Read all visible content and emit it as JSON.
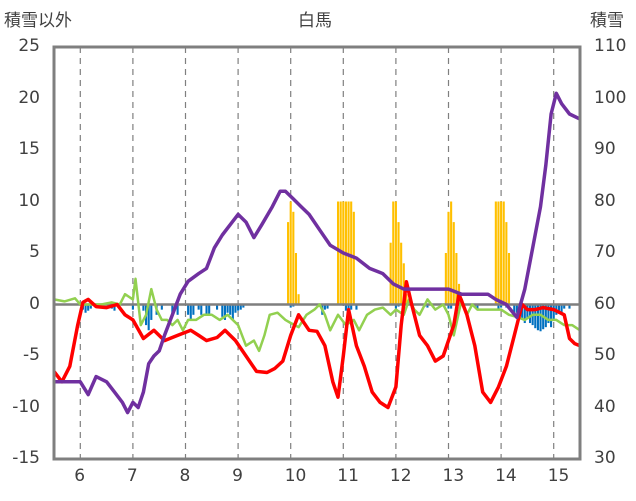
{
  "chart_data": {
    "type": "line",
    "title": "白馬",
    "ylabel_left": "積雪以外",
    "ylabel_right": "積雪",
    "ylim_left": [
      -15,
      25
    ],
    "ylim_right": [
      30,
      110
    ],
    "yticks_left": [
      "25",
      "20",
      "15",
      "10",
      "5",
      "0",
      "-5",
      "-10",
      "-15"
    ],
    "yticks_right": [
      "110",
      "100",
      "90",
      "80",
      "70",
      "60",
      "50",
      "40",
      "30"
    ],
    "xlim": [
      5.5,
      15.5
    ],
    "xticks": [
      "6",
      "7",
      "8",
      "9",
      "10",
      "11",
      "12",
      "13",
      "14",
      "15"
    ],
    "grid": "vertical-dashed",
    "series": [
      {
        "axis": "right",
        "color": "#7030a0",
        "points": [
          [
            5.5,
            45
          ],
          [
            5.75,
            45
          ],
          [
            6.0,
            45
          ],
          [
            6.15,
            42.5
          ],
          [
            6.3,
            46
          ],
          [
            6.5,
            45
          ],
          [
            6.65,
            43
          ],
          [
            6.8,
            41
          ],
          [
            6.9,
            39
          ],
          [
            7.0,
            41
          ],
          [
            7.1,
            40
          ],
          [
            7.2,
            43
          ],
          [
            7.3,
            48.5
          ],
          [
            7.4,
            50
          ],
          [
            7.5,
            51
          ],
          [
            7.6,
            54
          ],
          [
            7.75,
            58
          ],
          [
            7.9,
            62
          ],
          [
            8.05,
            64.5
          ],
          [
            8.25,
            66
          ],
          [
            8.4,
            67
          ],
          [
            8.55,
            71
          ],
          [
            8.7,
            73.5
          ],
          [
            8.85,
            75.5
          ],
          [
            9.0,
            77.5
          ],
          [
            9.15,
            76
          ],
          [
            9.3,
            73
          ],
          [
            9.45,
            75.5
          ],
          [
            9.65,
            79
          ],
          [
            9.8,
            82
          ],
          [
            9.9,
            82
          ],
          [
            10.05,
            80.5
          ],
          [
            10.2,
            79
          ],
          [
            10.35,
            77.5
          ],
          [
            10.55,
            74.5
          ],
          [
            10.75,
            71.5
          ],
          [
            11.0,
            70
          ],
          [
            11.25,
            69
          ],
          [
            11.5,
            67
          ],
          [
            11.75,
            66
          ],
          [
            11.95,
            64
          ],
          [
            12.15,
            63
          ],
          [
            12.5,
            63
          ],
          [
            12.75,
            63
          ],
          [
            13.0,
            63
          ],
          [
            13.25,
            62
          ],
          [
            13.5,
            62
          ],
          [
            13.75,
            62
          ],
          [
            13.9,
            61
          ],
          [
            14.1,
            60
          ],
          [
            14.3,
            57.5
          ],
          [
            14.45,
            63
          ],
          [
            14.6,
            71
          ],
          [
            14.75,
            79
          ],
          [
            14.85,
            87
          ],
          [
            14.95,
            97
          ],
          [
            15.05,
            101
          ],
          [
            15.15,
            99
          ],
          [
            15.3,
            97
          ],
          [
            15.4,
            96.5
          ],
          [
            15.5,
            96
          ]
        ]
      },
      {
        "axis": "left",
        "color": "#ff0000",
        "points": [
          [
            5.5,
            -6.5
          ],
          [
            5.65,
            -7.5
          ],
          [
            5.8,
            -6
          ],
          [
            5.95,
            -2
          ],
          [
            6.05,
            0.2
          ],
          [
            6.15,
            0.5
          ],
          [
            6.3,
            -0.2
          ],
          [
            6.5,
            -0.3
          ],
          [
            6.7,
            0
          ],
          [
            6.85,
            -1
          ],
          [
            7.0,
            -1.5
          ],
          [
            7.2,
            -3.3
          ],
          [
            7.4,
            -2.5
          ],
          [
            7.6,
            -3.5
          ],
          [
            7.85,
            -3
          ],
          [
            8.1,
            -2.5
          ],
          [
            8.25,
            -3
          ],
          [
            8.4,
            -3.5
          ],
          [
            8.6,
            -3.2
          ],
          [
            8.75,
            -2.5
          ],
          [
            8.95,
            -3.5
          ],
          [
            9.15,
            -5
          ],
          [
            9.35,
            -6.5
          ],
          [
            9.55,
            -6.6
          ],
          [
            9.7,
            -6.2
          ],
          [
            9.85,
            -5.5
          ],
          [
            10.0,
            -3
          ],
          [
            10.15,
            -1
          ],
          [
            10.35,
            -2.5
          ],
          [
            10.5,
            -2.6
          ],
          [
            10.65,
            -4
          ],
          [
            10.8,
            -7.5
          ],
          [
            10.9,
            -9
          ],
          [
            11.0,
            -5
          ],
          [
            11.1,
            -0.5
          ],
          [
            11.25,
            -4
          ],
          [
            11.4,
            -6
          ],
          [
            11.55,
            -8.5
          ],
          [
            11.7,
            -9.5
          ],
          [
            11.85,
            -10
          ],
          [
            12.0,
            -8
          ],
          [
            12.1,
            -2
          ],
          [
            12.2,
            2.2
          ],
          [
            12.3,
            0
          ],
          [
            12.45,
            -3
          ],
          [
            12.6,
            -4
          ],
          [
            12.75,
            -5.5
          ],
          [
            12.9,
            -5
          ],
          [
            13.1,
            -2
          ],
          [
            13.2,
            1
          ],
          [
            13.35,
            -1
          ],
          [
            13.5,
            -4
          ],
          [
            13.65,
            -8.5
          ],
          [
            13.8,
            -9.5
          ],
          [
            13.95,
            -8
          ],
          [
            14.1,
            -6
          ],
          [
            14.25,
            -3
          ],
          [
            14.4,
            0
          ],
          [
            14.5,
            -0.5
          ],
          [
            14.65,
            -0.5
          ],
          [
            14.8,
            -0.3
          ],
          [
            15.0,
            -0.5
          ],
          [
            15.2,
            -1
          ],
          [
            15.3,
            -3.3
          ],
          [
            15.4,
            -3.8
          ],
          [
            15.5,
            -4
          ]
        ]
      },
      {
        "axis": "left",
        "color": "#92d050",
        "points": [
          [
            5.5,
            0.5
          ],
          [
            5.7,
            0.3
          ],
          [
            5.9,
            0.6
          ],
          [
            6.0,
            0
          ],
          [
            6.2,
            0
          ],
          [
            6.4,
            0
          ],
          [
            6.6,
            0.2
          ],
          [
            6.75,
            0
          ],
          [
            6.85,
            1
          ],
          [
            7.0,
            0.5
          ],
          [
            7.05,
            2.5
          ],
          [
            7.15,
            -2
          ],
          [
            7.25,
            -1
          ],
          [
            7.35,
            1.5
          ],
          [
            7.45,
            -0.5
          ],
          [
            7.55,
            -1.5
          ],
          [
            7.65,
            -1.5
          ],
          [
            7.75,
            -2
          ],
          [
            7.85,
            -1.5
          ],
          [
            7.95,
            -2.5
          ],
          [
            8.05,
            -1.5
          ],
          [
            8.2,
            -1.5
          ],
          [
            8.35,
            -1
          ],
          [
            8.5,
            -1
          ],
          [
            8.65,
            -1.5
          ],
          [
            8.8,
            -1
          ],
          [
            9.0,
            -2
          ],
          [
            9.15,
            -4
          ],
          [
            9.3,
            -3.5
          ],
          [
            9.4,
            -4.5
          ],
          [
            9.5,
            -3
          ],
          [
            9.6,
            -1
          ],
          [
            9.75,
            -0.8
          ],
          [
            9.9,
            -1.5
          ],
          [
            10.0,
            -1.8
          ],
          [
            10.15,
            -2.2
          ],
          [
            10.3,
            -1
          ],
          [
            10.45,
            -0.5
          ],
          [
            10.55,
            0
          ],
          [
            10.65,
            -1
          ],
          [
            10.75,
            -2.5
          ],
          [
            10.9,
            -1
          ],
          [
            11.05,
            -2
          ],
          [
            11.2,
            -1.5
          ],
          [
            11.3,
            -2.5
          ],
          [
            11.45,
            -1
          ],
          [
            11.6,
            -0.5
          ],
          [
            11.75,
            -0.3
          ],
          [
            11.9,
            -1
          ],
          [
            12.0,
            -0.5
          ],
          [
            12.15,
            -1
          ],
          [
            12.25,
            0.5
          ],
          [
            12.35,
            -0.5
          ],
          [
            12.45,
            -1
          ],
          [
            12.6,
            0.5
          ],
          [
            12.75,
            -0.5
          ],
          [
            12.9,
            0
          ],
          [
            13.0,
            -1
          ],
          [
            13.1,
            -3
          ],
          [
            13.25,
            0.5
          ],
          [
            13.35,
            -1
          ],
          [
            13.45,
            0
          ],
          [
            13.55,
            -0.5
          ],
          [
            13.7,
            -0.5
          ],
          [
            13.85,
            -0.5
          ],
          [
            14.0,
            -0.5
          ],
          [
            14.15,
            -1
          ],
          [
            14.3,
            -1.2
          ],
          [
            14.45,
            -1.5
          ],
          [
            14.6,
            -1
          ],
          [
            14.75,
            -1
          ],
          [
            14.9,
            -1.5
          ],
          [
            15.05,
            -1.5
          ],
          [
            15.2,
            -2
          ],
          [
            15.35,
            -2
          ],
          [
            15.5,
            -2.5
          ]
        ]
      }
    ],
    "bars": [
      {
        "axis": "left",
        "color": "#ffc000",
        "width": 0.04,
        "points": [
          [
            9.95,
            8
          ],
          [
            10.0,
            10
          ],
          [
            10.05,
            9
          ],
          [
            10.1,
            5
          ],
          [
            10.15,
            1
          ],
          [
            10.9,
            10
          ],
          [
            10.95,
            10
          ],
          [
            11.0,
            10
          ],
          [
            11.05,
            10
          ],
          [
            11.1,
            10
          ],
          [
            11.15,
            10
          ],
          [
            11.2,
            9
          ],
          [
            11.9,
            6
          ],
          [
            11.95,
            10
          ],
          [
            12.0,
            10
          ],
          [
            12.05,
            8
          ],
          [
            12.1,
            6
          ],
          [
            12.15,
            4
          ],
          [
            12.2,
            1
          ],
          [
            12.95,
            5
          ],
          [
            13.0,
            9
          ],
          [
            13.05,
            10
          ],
          [
            13.1,
            8
          ],
          [
            13.15,
            5
          ],
          [
            13.2,
            2
          ],
          [
            13.9,
            10
          ],
          [
            13.95,
            10
          ],
          [
            14.0,
            10
          ],
          [
            14.05,
            10
          ],
          [
            14.1,
            8
          ],
          [
            14.15,
            5
          ]
        ]
      },
      {
        "axis": "left",
        "color": "#0070c0",
        "width": 0.04,
        "points": [
          [
            6.05,
            -0.5
          ],
          [
            6.1,
            -0.8
          ],
          [
            6.15,
            -0.6
          ],
          [
            6.2,
            -0.4
          ],
          [
            6.3,
            -0.3
          ],
          [
            6.6,
            -0.4
          ],
          [
            6.65,
            -0.6
          ],
          [
            7.0,
            -0.5
          ],
          [
            7.2,
            -0.6
          ],
          [
            7.25,
            -2
          ],
          [
            7.3,
            -2.5
          ],
          [
            7.35,
            -1.5
          ],
          [
            7.45,
            -1
          ],
          [
            7.55,
            -0.5
          ],
          [
            7.75,
            -1
          ],
          [
            7.85,
            -1
          ],
          [
            8.05,
            -1
          ],
          [
            8.1,
            -1.5
          ],
          [
            8.15,
            -1
          ],
          [
            8.25,
            -0.5
          ],
          [
            8.3,
            -1
          ],
          [
            8.4,
            -1
          ],
          [
            8.45,
            -1
          ],
          [
            8.6,
            -0.5
          ],
          [
            8.7,
            -1.2
          ],
          [
            8.75,
            -1.5
          ],
          [
            8.8,
            -0.8
          ],
          [
            8.85,
            -1
          ],
          [
            8.9,
            -1.5
          ],
          [
            8.95,
            -0.8
          ],
          [
            9.0,
            -0.6
          ],
          [
            9.05,
            -0.5
          ],
          [
            9.1,
            -0.3
          ],
          [
            10.0,
            -0.3
          ],
          [
            10.05,
            -0.2
          ],
          [
            10.6,
            -1
          ],
          [
            10.65,
            -0.5
          ],
          [
            10.7,
            -0.4
          ],
          [
            11.05,
            -0.6
          ],
          [
            11.1,
            -1
          ],
          [
            11.15,
            -0.5
          ],
          [
            11.25,
            -0.5
          ],
          [
            12.0,
            -0.4
          ],
          [
            12.05,
            -0.2
          ],
          [
            12.55,
            -0.2
          ],
          [
            12.6,
            -0.3
          ],
          [
            13.0,
            -0.4
          ],
          [
            13.05,
            -0.4
          ],
          [
            13.5,
            -0.3
          ],
          [
            13.55,
            -0.5
          ],
          [
            13.95,
            -0.5
          ],
          [
            14.0,
            -0.3
          ],
          [
            14.1,
            -0.3
          ],
          [
            14.25,
            -1
          ],
          [
            14.3,
            -0.8
          ],
          [
            14.35,
            -1.2
          ],
          [
            14.4,
            -1.5
          ],
          [
            14.45,
            -1.8
          ],
          [
            14.5,
            -1.4
          ],
          [
            14.55,
            -1.8
          ],
          [
            14.6,
            -2
          ],
          [
            14.65,
            -2.3
          ],
          [
            14.7,
            -2.5
          ],
          [
            14.75,
            -2.6
          ],
          [
            14.8,
            -2.4
          ],
          [
            14.85,
            -2.2
          ],
          [
            14.9,
            -1.8
          ],
          [
            14.95,
            -2.2
          ],
          [
            15.0,
            -1.5
          ],
          [
            15.05,
            -1
          ],
          [
            15.1,
            -0.6
          ],
          [
            15.15,
            -1
          ],
          [
            15.2,
            -0.4
          ],
          [
            15.3,
            -0.4
          ]
        ]
      }
    ]
  }
}
